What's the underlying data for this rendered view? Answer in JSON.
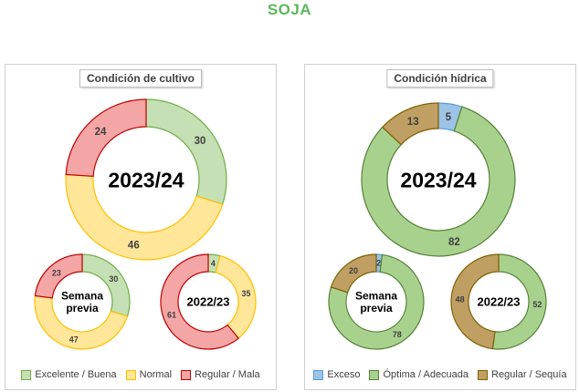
{
  "title": "SOJA",
  "chart_data": [
    {
      "type": "donut",
      "title": "Condición de cultivo",
      "legend": [
        {
          "label": "Excelente / Buena",
          "fill": "#c5e0b4",
          "stroke": "#70ad47"
        },
        {
          "label": "Normal",
          "fill": "#ffe699",
          "stroke": "#ffc000"
        },
        {
          "label": "Regular / Mala",
          "fill": "#f4a6a6",
          "stroke": "#c00000"
        }
      ],
      "rings": [
        {
          "center_label": "2023/24",
          "values": [
            30,
            46,
            24
          ]
        },
        {
          "center_label": "Semana previa",
          "values": [
            30,
            47,
            23
          ]
        },
        {
          "center_label": "2022/23",
          "values": [
            4,
            35,
            61
          ]
        }
      ]
    },
    {
      "type": "donut",
      "title": "Condición hídrica",
      "legend": [
        {
          "label": "Exceso",
          "fill": "#9dc3e6",
          "stroke": "#5b9bd5"
        },
        {
          "label": "Óptima / Adecuada",
          "fill": "#a9d18e",
          "stroke": "#548235"
        },
        {
          "label": "Regular / Sequía",
          "fill": "#bf9f62",
          "stroke": "#7f6000"
        }
      ],
      "rings": [
        {
          "center_label": "2023/24",
          "values": [
            5,
            82,
            13
          ]
        },
        {
          "center_label": "Semana previa",
          "values": [
            2,
            78,
            20
          ]
        },
        {
          "center_label": "2022/23",
          "values": [
            0,
            52,
            48
          ]
        }
      ]
    }
  ]
}
